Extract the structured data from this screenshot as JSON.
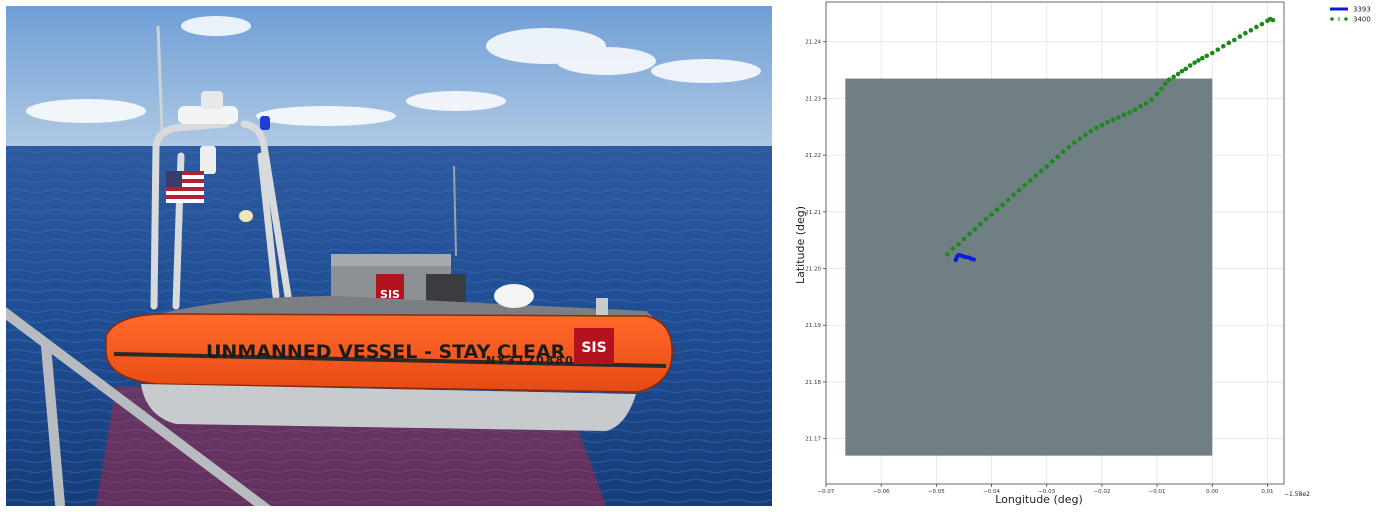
{
  "photo": {
    "hull_text": "UNMANNED VESSEL - STAY CLEAR",
    "hull_id": "NY3120880",
    "logo_text": "SIS",
    "colors": {
      "sky": "#8fb6df",
      "sea": "#1d4a8f",
      "hull": "#ff5a1f",
      "hull_dark": "#2a2a2a"
    }
  },
  "chart_data": {
    "type": "scatter",
    "title": "",
    "xlabel": "Longitude (deg)",
    "ylabel": "Latitude (deg)",
    "x_offset_label": "−1.58e2",
    "xlim": [
      -0.07,
      0.013
    ],
    "ylim": [
      21.162,
      21.247
    ],
    "x_ticks": [
      -0.07,
      -0.06,
      -0.05,
      -0.04,
      -0.03,
      -0.02,
      -0.01,
      0.0,
      0.01
    ],
    "x_tick_labels": [
      "−0.07",
      "−0.06",
      "−0.05",
      "−0.04",
      "−0.03",
      "−0.02",
      "−0.01",
      "0.00",
      "0.01"
    ],
    "y_ticks": [
      21.17,
      21.18,
      21.19,
      21.2,
      21.21,
      21.22,
      21.23,
      21.24
    ],
    "y_tick_labels": [
      "21.17",
      "21.18",
      "21.19",
      "21.20",
      "21.21",
      "21.22",
      "21.23",
      "21.24"
    ],
    "grid": true,
    "legend_position": "outside-top-right",
    "region": {
      "x": [
        -0.0665,
        0.0
      ],
      "y": [
        21.167,
        21.2335
      ],
      "color": "#707f84"
    },
    "series": [
      {
        "name": "3393",
        "style": "solid-line",
        "color": "#0a1adf",
        "x": [
          -0.0465,
          -0.0462,
          -0.0459,
          -0.0455,
          -0.045,
          -0.0445,
          -0.044,
          -0.0436,
          -0.0432
        ],
        "y": [
          21.2015,
          21.2022,
          21.2024,
          21.2023,
          21.2021,
          21.202,
          21.2019,
          21.2017,
          21.2016
        ]
      },
      {
        "name": "3400",
        "style": "dashed-markers",
        "color": "#1a8a1a",
        "x": [
          -0.048,
          -0.047,
          -0.046,
          -0.045,
          -0.044,
          -0.043,
          -0.042,
          -0.041,
          -0.04,
          -0.039,
          -0.038,
          -0.037,
          -0.036,
          -0.035,
          -0.034,
          -0.033,
          -0.032,
          -0.031,
          -0.03,
          -0.029,
          -0.028,
          -0.027,
          -0.026,
          -0.025,
          -0.024,
          -0.023,
          -0.022,
          -0.021,
          -0.02,
          -0.019,
          -0.018,
          -0.017,
          -0.016,
          -0.015,
          -0.014,
          -0.013,
          -0.012,
          -0.011,
          -0.01,
          -0.0092,
          -0.0085,
          -0.0078,
          -0.007,
          -0.0062,
          -0.0055,
          -0.0048,
          -0.004,
          -0.0032,
          -0.0025,
          -0.0018,
          -0.001,
          0.0,
          0.001,
          0.002,
          0.003,
          0.004,
          0.005,
          0.006,
          0.007,
          0.008,
          0.009,
          0.01,
          0.0105,
          0.011
        ],
        "y": [
          21.2025,
          21.2035,
          21.2043,
          21.2052,
          21.2061,
          21.2069,
          21.2078,
          21.2087,
          21.2095,
          21.2104,
          21.2112,
          21.2121,
          21.213,
          21.2138,
          21.2147,
          21.2155,
          21.2164,
          21.2172,
          21.218,
          21.2189,
          21.2197,
          21.2206,
          21.2214,
          21.2222,
          21.2229,
          21.2236,
          21.2242,
          21.2248,
          21.2253,
          21.2258,
          21.2262,
          21.2266,
          21.2271,
          21.2275,
          21.228,
          21.2286,
          21.2291,
          21.2298,
          21.2308,
          21.2317,
          21.2326,
          21.2333,
          21.2338,
          21.2343,
          21.2348,
          21.2352,
          21.2358,
          21.2363,
          21.2367,
          21.2371,
          21.2375,
          21.238,
          21.2386,
          21.2392,
          21.2398,
          21.2403,
          21.2409,
          21.2415,
          21.242,
          21.2426,
          21.2431,
          21.2437,
          21.244,
          21.2438
        ]
      }
    ]
  }
}
